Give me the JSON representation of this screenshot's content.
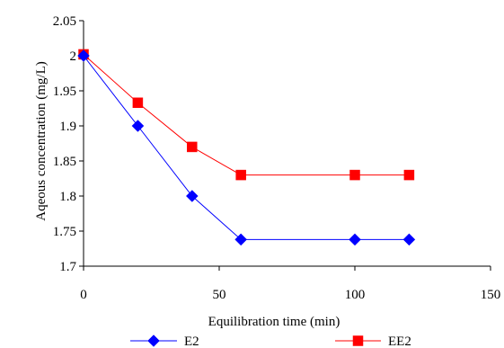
{
  "chart_data": {
    "type": "line",
    "title": "",
    "xlabel": "Equilibration time (min)",
    "ylabel": "Aqeous concentration (mg/L)",
    "xlim": [
      0,
      150
    ],
    "ylim": [
      1.7,
      2.05
    ],
    "xticks": [
      "0",
      "50",
      "100",
      "150"
    ],
    "yticks": [
      "1.7",
      "1.75",
      "1.8",
      "1.85",
      "1.9",
      "1.95",
      "2",
      "2.05"
    ],
    "grid": false,
    "legend_position": "bottom",
    "series": [
      {
        "name": "E2",
        "color": "#0000ff",
        "marker": "diamond",
        "x": [
          0,
          20,
          40,
          58,
          100,
          120
        ],
        "y": [
          2.0,
          1.9,
          1.8,
          1.738,
          1.738,
          1.738
        ]
      },
      {
        "name": "EE2",
        "color": "#ff0000",
        "marker": "square",
        "x": [
          0,
          20,
          40,
          58,
          100,
          120
        ],
        "y": [
          2.002,
          1.933,
          1.87,
          1.83,
          1.83,
          1.83
        ]
      }
    ]
  }
}
